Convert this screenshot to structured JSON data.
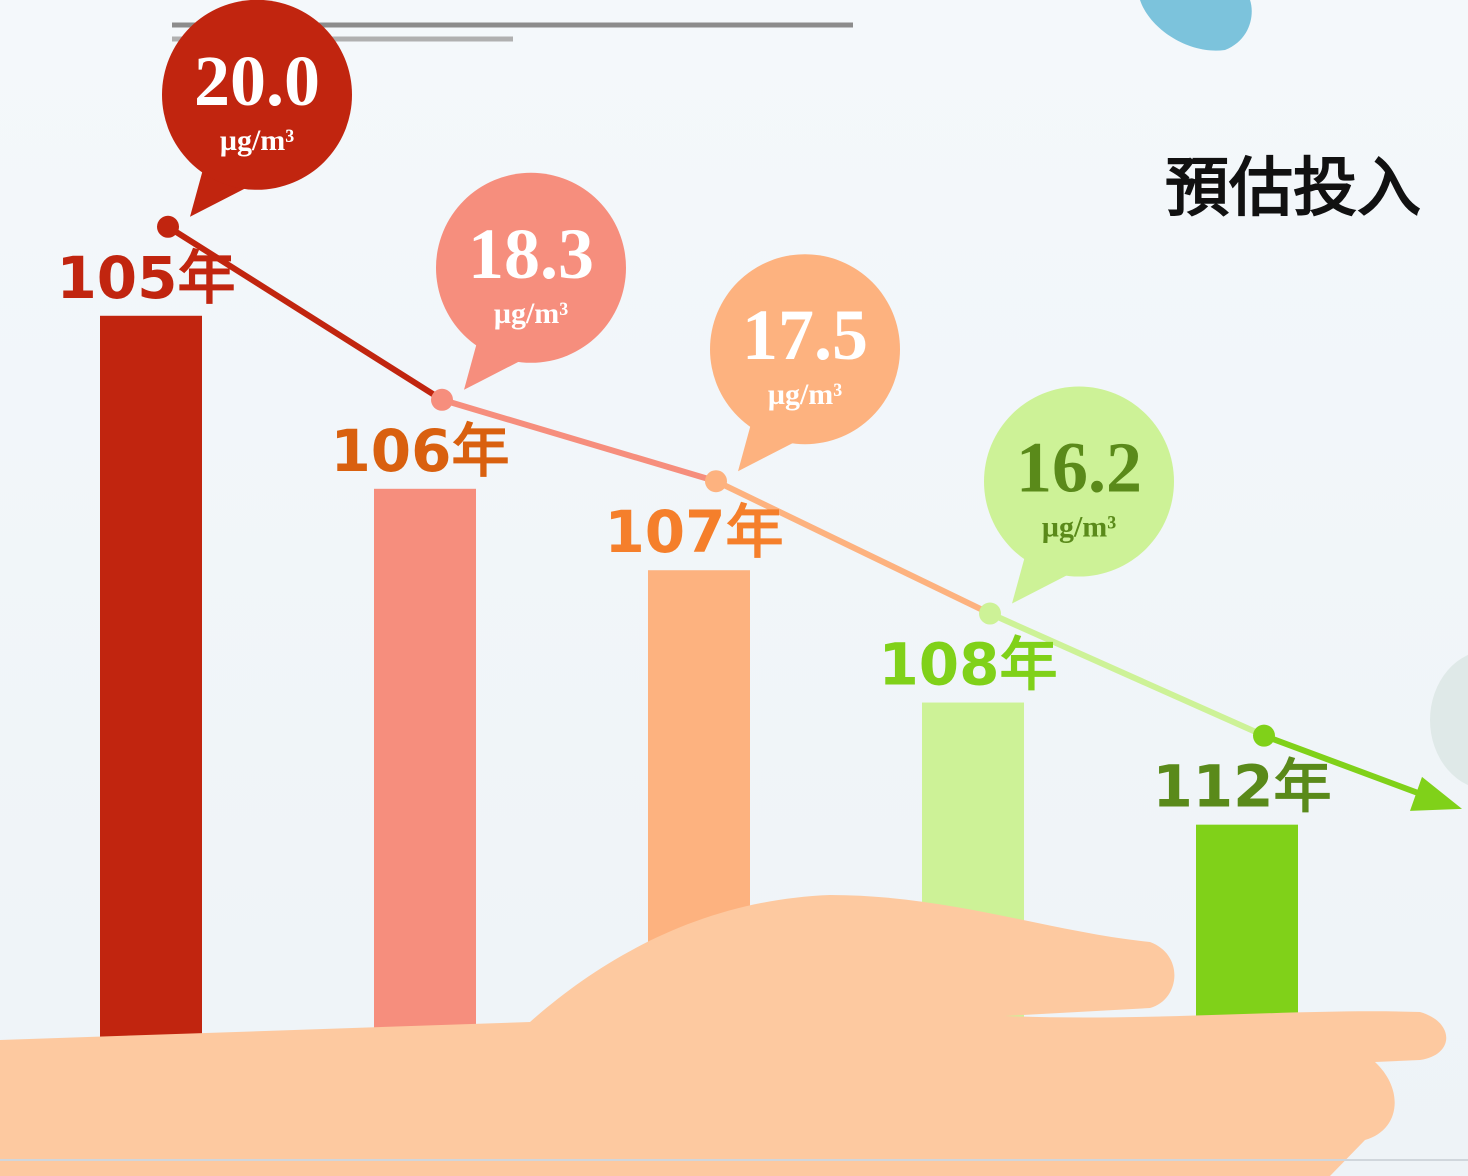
{
  "chart_data": {
    "type": "bar",
    "annotation": "預估投入",
    "unit": "µg/m³",
    "categories": [
      "105年",
      "106年",
      "107年",
      "108年",
      "112年"
    ],
    "values": [
      20.0,
      18.3,
      17.5,
      16.2,
      15.0
    ],
    "value_labels": [
      "20.0",
      "18.3",
      "17.5",
      "16.2",
      null
    ],
    "colors": [
      "#c1250f",
      "#f68e7d",
      "#fdb27f",
      "#cdf297",
      "#80d119"
    ],
    "label_colors": [
      "#c1250f",
      "#d9600f",
      "#f57f2b",
      "#80d119",
      "#5a8a1a"
    ],
    "value_label_colors": [
      "#ffffff",
      "#ffffff",
      "#ffffff",
      "#5a8a1a",
      "#ffffff"
    ],
    "ylim": [
      12,
      21
    ]
  }
}
